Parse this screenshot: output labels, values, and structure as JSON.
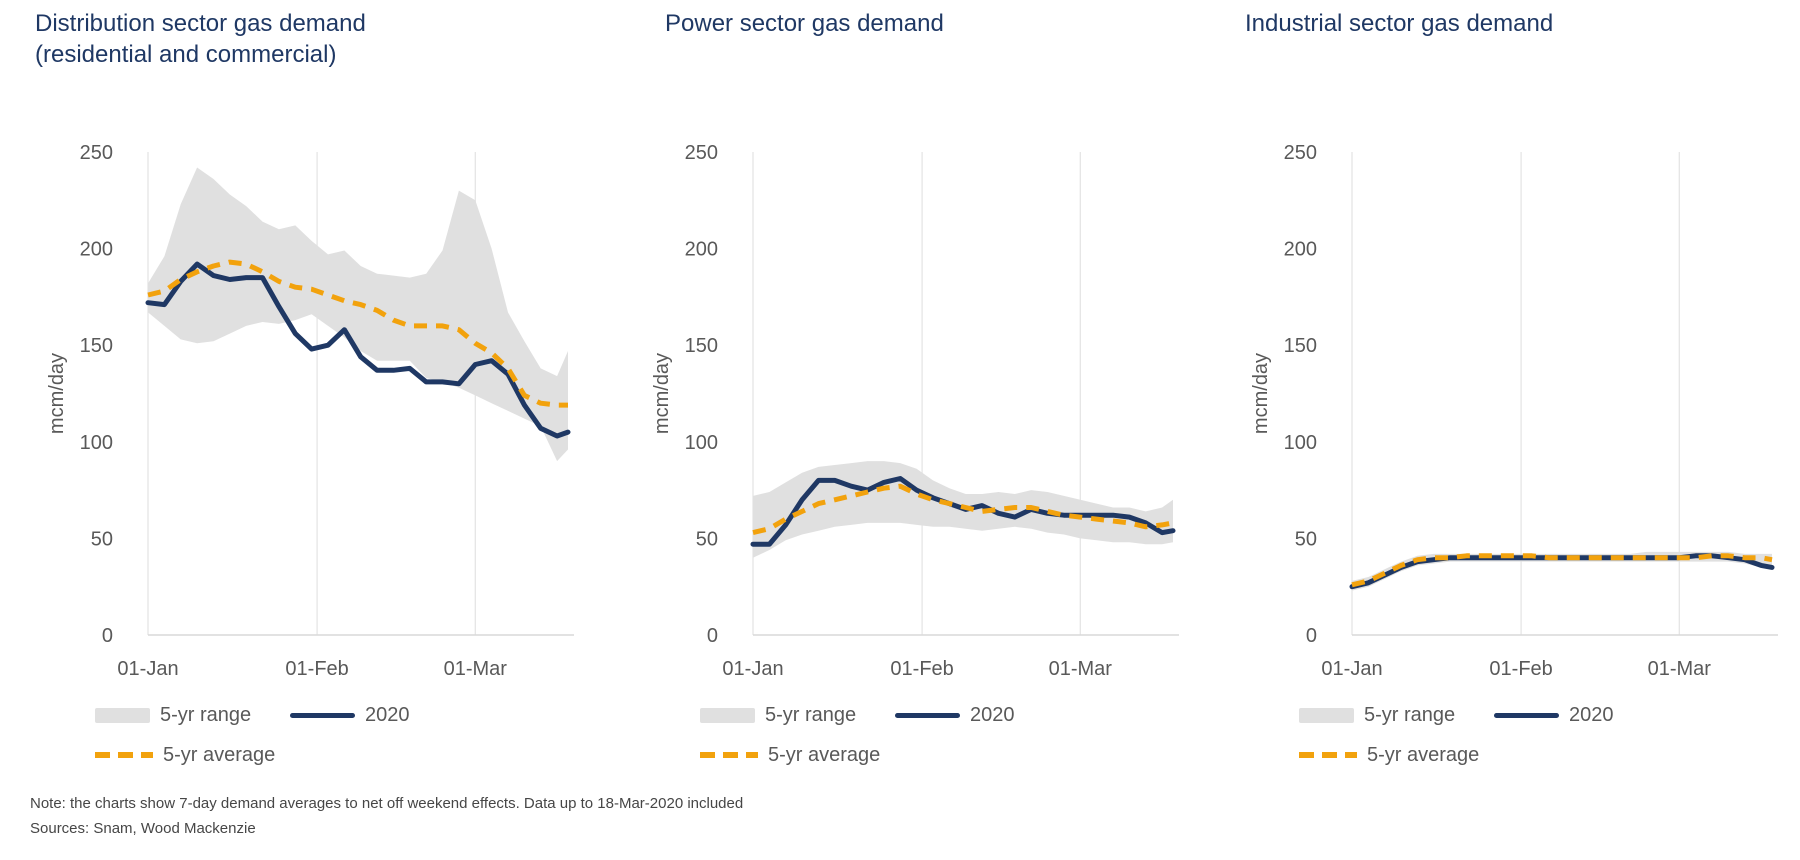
{
  "colors": {
    "title": "#1f3864",
    "line_2020": "#1f3864",
    "average_line": "#f2a20d",
    "range_fill": "#e0e0e0",
    "gridline": "#e5e5e5",
    "axis_line": "#d9d9d9",
    "tick_text": "#595959",
    "note_text": "#464646",
    "background": "#ffffff"
  },
  "legend": {
    "range": "5-yr range",
    "y2020": "2020",
    "average": "5-yr average"
  },
  "note": {
    "line1": "Note: the charts show 7-day demand averages to net off weekend effects. Data up to 18-Mar-2020  included",
    "line2": "Sources: Snam, Wood Mackenzie"
  },
  "chart_data": [
    {
      "type": "line",
      "title": "Distribution sector gas demand (residential and commercial)",
      "title_lines": [
        "Distribution sector gas demand",
        "(residential and commercial)"
      ],
      "xlabel": "",
      "ylabel": "mcm/day",
      "ylim": [
        0,
        250
      ],
      "axes": {
        "y_ticks": [
          0,
          50,
          100,
          150,
          200,
          250
        ],
        "x_ticks": [
          {
            "day": 0,
            "label": "01-Jan"
          },
          {
            "day": 31,
            "label": "01-Feb"
          },
          {
            "day": 60,
            "label": "01-Mar"
          }
        ],
        "x_span_days": 77,
        "grid": "vertical month gridlines, bottom axis line only"
      },
      "days": [
        0,
        3,
        6,
        9,
        12,
        15,
        18,
        21,
        24,
        27,
        30,
        33,
        36,
        39,
        42,
        45,
        48,
        51,
        54,
        57,
        60,
        63,
        66,
        69,
        72,
        75,
        77
      ],
      "series": [
        {
          "name": "5-yr range",
          "kind": "band",
          "upper": [
            182,
            196,
            223,
            242,
            236,
            228,
            222,
            214,
            210,
            212,
            204,
            197,
            199,
            191,
            187,
            186,
            185,
            187,
            199,
            230,
            225,
            200,
            167,
            152,
            138,
            134,
            147
          ],
          "lower": [
            167,
            160,
            153,
            151,
            152,
            156,
            160,
            162,
            161,
            163,
            166,
            160,
            154,
            147,
            142,
            142,
            142,
            133,
            131,
            128,
            124,
            120,
            116,
            112,
            108,
            90,
            96
          ]
        },
        {
          "name": "2020",
          "kind": "line",
          "dashed": false,
          "values": [
            172,
            171,
            183,
            192,
            186,
            184,
            185,
            185,
            170,
            156,
            148,
            150,
            158,
            144,
            137,
            137,
            138,
            131,
            131,
            130,
            140,
            142,
            135,
            119,
            107,
            103,
            105
          ]
        },
        {
          "name": "5-yr average",
          "kind": "line",
          "dashed": true,
          "values": [
            176,
            178,
            184,
            188,
            191,
            193,
            192,
            188,
            183,
            180,
            179,
            176,
            173,
            171,
            168,
            163,
            160,
            160,
            160,
            158,
            151,
            146,
            138,
            124,
            120,
            119,
            119
          ]
        }
      ]
    },
    {
      "type": "line",
      "title": "Power sector gas demand",
      "title_lines": [
        "Power sector gas demand"
      ],
      "xlabel": "",
      "ylabel": "mcm/day",
      "ylim": [
        0,
        250
      ],
      "axes": {
        "y_ticks": [
          0,
          50,
          100,
          150,
          200,
          250
        ],
        "x_ticks": [
          {
            "day": 0,
            "label": "01-Jan"
          },
          {
            "day": 31,
            "label": "01-Feb"
          },
          {
            "day": 60,
            "label": "01-Mar"
          }
        ],
        "x_span_days": 77,
        "grid": "vertical month gridlines, bottom axis line only"
      },
      "days": [
        0,
        3,
        6,
        9,
        12,
        15,
        18,
        21,
        24,
        27,
        30,
        33,
        36,
        39,
        42,
        45,
        48,
        51,
        54,
        57,
        60,
        63,
        66,
        69,
        72,
        75,
        77
      ],
      "series": [
        {
          "name": "5-yr range",
          "kind": "band",
          "upper": [
            72,
            74,
            79,
            84,
            87,
            88,
            89,
            90,
            90,
            89,
            86,
            80,
            76,
            73,
            73,
            74,
            73,
            75,
            74,
            72,
            70,
            68,
            66,
            66,
            64,
            66,
            70
          ],
          "lower": [
            40,
            44,
            49,
            52,
            54,
            56,
            57,
            58,
            58,
            58,
            57,
            56,
            56,
            55,
            54,
            55,
            56,
            55,
            53,
            52,
            50,
            49,
            48,
            48,
            47,
            47,
            48
          ]
        },
        {
          "name": "2020",
          "kind": "line",
          "dashed": false,
          "values": [
            47,
            47,
            57,
            70,
            80,
            80,
            77,
            75,
            79,
            81,
            75,
            71,
            68,
            65,
            67,
            63,
            61,
            65,
            63,
            62,
            62,
            62,
            62,
            61,
            58,
            53,
            54
          ]
        },
        {
          "name": "5-yr average",
          "kind": "line",
          "dashed": true,
          "values": [
            53,
            55,
            60,
            64,
            68,
            70,
            72,
            74,
            76,
            77,
            73,
            70,
            68,
            66,
            64,
            65,
            66,
            66,
            64,
            62,
            61,
            60,
            59,
            58,
            56,
            57,
            58
          ]
        }
      ]
    },
    {
      "type": "line",
      "title": "Industrial sector gas demand",
      "title_lines": [
        "Industrial sector gas demand"
      ],
      "xlabel": "",
      "ylabel": "mcm/day",
      "ylim": [
        0,
        250
      ],
      "axes": {
        "y_ticks": [
          0,
          50,
          100,
          150,
          200,
          250
        ],
        "x_ticks": [
          {
            "day": 0,
            "label": "01-Jan"
          },
          {
            "day": 31,
            "label": "01-Feb"
          },
          {
            "day": 60,
            "label": "01-Mar"
          }
        ],
        "x_span_days": 77,
        "grid": "vertical month gridlines, bottom axis line only"
      },
      "days": [
        0,
        3,
        6,
        9,
        12,
        15,
        18,
        21,
        24,
        27,
        30,
        33,
        36,
        39,
        42,
        45,
        48,
        51,
        54,
        57,
        60,
        63,
        66,
        69,
        72,
        75,
        77
      ],
      "series": [
        {
          "name": "5-yr range",
          "kind": "band",
          "upper": [
            28,
            30,
            34,
            38,
            41,
            42,
            42,
            42,
            42,
            42,
            42,
            42,
            42,
            42,
            42,
            42,
            42,
            42,
            43,
            43,
            43,
            43,
            43,
            43,
            42,
            42,
            42
          ],
          "lower": [
            23,
            25,
            29,
            33,
            36,
            37,
            38,
            38,
            38,
            38,
            38,
            38,
            38,
            38,
            38,
            38,
            38,
            38,
            38,
            38,
            38,
            38,
            38,
            38,
            37,
            35,
            34
          ]
        },
        {
          "name": "2020",
          "kind": "line",
          "dashed": false,
          "values": [
            25,
            27,
            31,
            35,
            38,
            39,
            40,
            40,
            40,
            40,
            40,
            40,
            40,
            40,
            40,
            40,
            40,
            40,
            40,
            40,
            40,
            41,
            41,
            40,
            39,
            36,
            35
          ]
        },
        {
          "name": "5-yr average",
          "kind": "line",
          "dashed": true,
          "values": [
            26,
            28,
            32,
            36,
            39,
            40,
            40,
            41,
            41,
            41,
            41,
            41,
            40,
            40,
            40,
            40,
            40,
            40,
            40,
            40,
            40,
            40,
            41,
            41,
            40,
            40,
            39
          ]
        }
      ]
    }
  ]
}
